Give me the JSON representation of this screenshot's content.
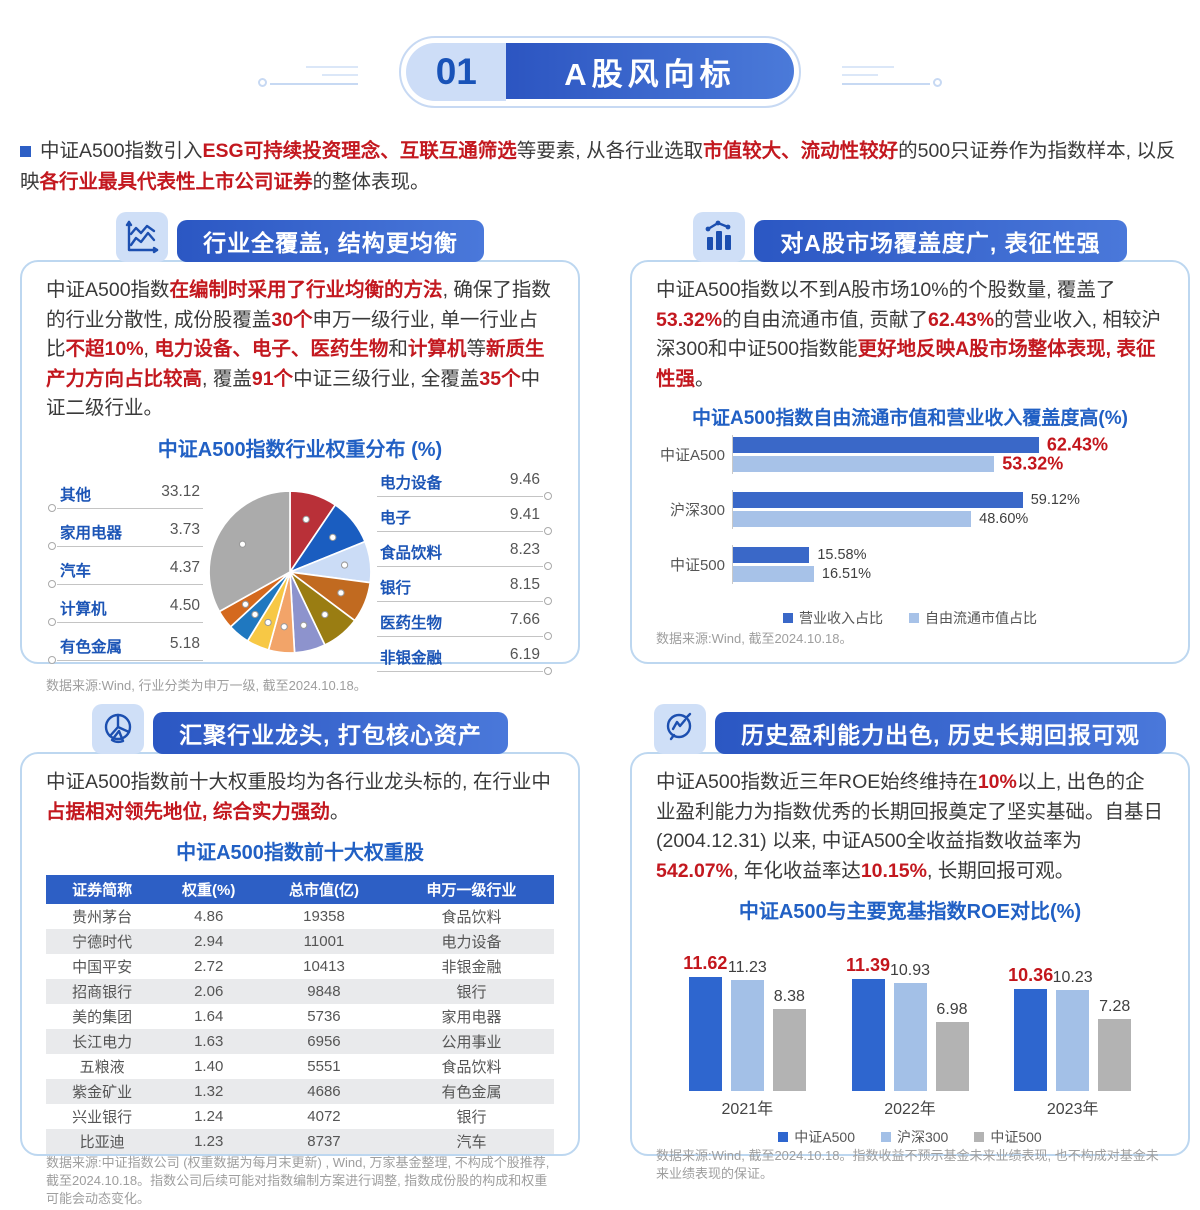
{
  "colors": {
    "brand_blue": "#2b57c3",
    "accent_red": "#c3181f",
    "light_blue_tile": "#cfdff7",
    "panel_border": "#bdd7f0"
  },
  "header": {
    "number": "01",
    "title": "A股风向标"
  },
  "intro_segments": [
    {
      "t": "中证A500指数引入"
    },
    {
      "t": "ESG可持续投资理念、互联互通筛选",
      "em": 1
    },
    {
      "t": "等要素, 从各行业选取"
    },
    {
      "t": "市值较大、流动性较好",
      "em": 1
    },
    {
      "t": "的500只证券作为指数样本, 以反映"
    },
    {
      "t": "各行业最具代表性上市公司证券",
      "em": 1
    },
    {
      "t": "的整体表现。"
    }
  ],
  "panels": {
    "industry": {
      "title": "行业全覆盖, 结构更均衡",
      "icon": "line-chart-icon",
      "paragraph": [
        {
          "t": "中证A500指数"
        },
        {
          "t": "在编制时采用了行业均衡的方法",
          "em": 1
        },
        {
          "t": ", 确保了指数的行业分散性, 成份股覆盖"
        },
        {
          "t": "30个",
          "em": 1
        },
        {
          "t": "申万一级行业, 单一行业占比"
        },
        {
          "t": "不超10%",
          "em": 1
        },
        {
          "t": ", "
        },
        {
          "t": "电力设备、电子、医药生物",
          "em": 1
        },
        {
          "t": "和"
        },
        {
          "t": "计算机",
          "em": 1
        },
        {
          "t": "等"
        },
        {
          "t": "新质生产力方向占比较高",
          "em": 1
        },
        {
          "t": ", 覆盖"
        },
        {
          "t": "91个",
          "em": 1
        },
        {
          "t": "中证三级行业, 全覆盖"
        },
        {
          "t": "35个",
          "em": 1
        },
        {
          "t": "中证二级行业。"
        }
      ],
      "footnote": "数据来源:Wind, 行业分类为申万一级, 截至2024.10.18。"
    },
    "coverage": {
      "title": "对A股市场覆盖度广, 表征性强",
      "icon": "column-chart-icon",
      "paragraph": [
        {
          "t": "中证A500指数以不到A股市场10%的个股数量, 覆盖了"
        },
        {
          "t": "53.32%",
          "em": 1
        },
        {
          "t": "的自由流通市值, 贡献了"
        },
        {
          "t": "62.43%",
          "em": 1
        },
        {
          "t": "的营业收入, 相较沪深300和中证500指数能"
        },
        {
          "t": "更好地反映A股市场整体表现, 表征性强",
          "em": 1
        },
        {
          "t": "。"
        }
      ],
      "footnote": "数据来源:Wind, 截至2024.10.18。"
    },
    "holdings": {
      "title": "汇聚行业龙头, 打包核心资产",
      "icon": "pie-chart-icon",
      "paragraph": [
        {
          "t": "中证A500指数前十大权重股均为各行业龙头标的, 在行业中"
        },
        {
          "t": "占据相对领先地位, 综合实力强劲",
          "em": 1
        },
        {
          "t": "。"
        }
      ],
      "footnote": "数据来源:中证指数公司 (权重数据为每月末更新) , Wind, 万家基金整理, 不构成个股推荐, 截至2024.10.18。指数公司后续可能对指数编制方案进行调整, 指数成份股的构成和权重可能会动态变化。"
    },
    "roe": {
      "title": "历史盈利能力出色, 历史长期回报可观",
      "icon": "magnifier-chart-icon",
      "paragraph": [
        {
          "t": "中证A500指数近三年ROE始终维持在"
        },
        {
          "t": "10%",
          "em": 1
        },
        {
          "t": "以上, 出色的企业盈利能力为指数优秀的长期回报奠定了坚实基础。自基日 (2004.12.31) 以来, 中证A500全收益指数收益率为"
        },
        {
          "t": "542.07%",
          "em": 1
        },
        {
          "t": ", 年化收益率达"
        },
        {
          "t": "10.15%",
          "em": 1
        },
        {
          "t": ", 长期回报可观。"
        }
      ],
      "footnote": "数据来源:Wind, 截至2024.10.18。指数收益不预示基金未来业绩表现, 也不构成对基金未来业绩表现的保证。"
    }
  },
  "chart_data": [
    {
      "type": "pie",
      "title": "中证A500指数行业权重分布 (%)",
      "slices": [
        {
          "label": "电力设备",
          "value": 9.46,
          "color": "#b93038"
        },
        {
          "label": "电子",
          "value": 9.41,
          "color": "#1a5dc0"
        },
        {
          "label": "食品饮料",
          "value": 8.23,
          "color": "#cbdcf6"
        },
        {
          "label": "银行",
          "value": 8.15,
          "color": "#c16a20"
        },
        {
          "label": "医药生物",
          "value": 7.66,
          "color": "#9a7d12"
        },
        {
          "label": "非银金融",
          "value": 6.19,
          "color": "#8d93cd"
        },
        {
          "label": "有色金属",
          "value": 5.18,
          "color": "#f2a469"
        },
        {
          "label": "计算机",
          "value": 4.5,
          "color": "#f7c845"
        },
        {
          "label": "汽车",
          "value": 4.37,
          "color": "#1f78c0"
        },
        {
          "label": "家用电器",
          "value": 3.73,
          "color": "#d4691e"
        },
        {
          "label": "其他",
          "value": 33.12,
          "color": "#ababab"
        }
      ],
      "left_order": [
        10,
        9,
        8,
        7,
        6
      ],
      "right_order": [
        0,
        1,
        2,
        3,
        4,
        5
      ]
    },
    {
      "type": "bar",
      "orientation": "horizontal",
      "title": "中证A500指数自由流通市值和营业收入覆盖度高(%)",
      "categories": [
        "中证A500",
        "沪深300",
        "中证500"
      ],
      "series": [
        {
          "name": "营业收入占比",
          "color": "#3a68c8",
          "values": [
            62.43,
            59.12,
            15.58
          ]
        },
        {
          "name": "自由流通市值占比",
          "color": "#a7c2e8",
          "values": [
            53.32,
            48.6,
            16.51
          ]
        }
      ],
      "xlim": [
        0,
        70
      ],
      "highlight_category": "中证A500",
      "value_suffix": "%",
      "legend_position": "bottom"
    },
    {
      "type": "bar",
      "title": "中证A500与主要宽基指数ROE对比(%)",
      "categories": [
        "2021年",
        "2022年",
        "2023年"
      ],
      "series": [
        {
          "name": "中证A500",
          "color": "#2e66cf",
          "values": [
            11.62,
            11.39,
            10.36
          ],
          "highlight": true
        },
        {
          "name": "沪深300",
          "color": "#a3c0e7",
          "values": [
            11.23,
            10.93,
            10.23
          ]
        },
        {
          "name": "中证500",
          "color": "#b3b3b3",
          "values": [
            8.38,
            6.98,
            7.28
          ]
        }
      ],
      "ylim": [
        0,
        13
      ],
      "legend_position": "bottom"
    },
    {
      "type": "table",
      "title": "中证A500指数前十大权重股",
      "headers": [
        "证券简称",
        "权重(%)",
        "总市值(亿)",
        "申万一级行业"
      ],
      "rows": [
        [
          "贵州茅台",
          "4.86",
          "19358",
          "食品饮料"
        ],
        [
          "宁德时代",
          "2.94",
          "11001",
          "电力设备"
        ],
        [
          "中国平安",
          "2.72",
          "10413",
          "非银金融"
        ],
        [
          "招商银行",
          "2.06",
          "9848",
          "银行"
        ],
        [
          "美的集团",
          "1.64",
          "5736",
          "家用电器"
        ],
        [
          "长江电力",
          "1.63",
          "6956",
          "公用事业"
        ],
        [
          "五粮液",
          "1.40",
          "5551",
          "食品饮料"
        ],
        [
          "紫金矿业",
          "1.32",
          "4686",
          "有色金属"
        ],
        [
          "兴业银行",
          "1.24",
          "4072",
          "银行"
        ],
        [
          "比亚迪",
          "1.23",
          "8737",
          "汽车"
        ]
      ]
    }
  ]
}
